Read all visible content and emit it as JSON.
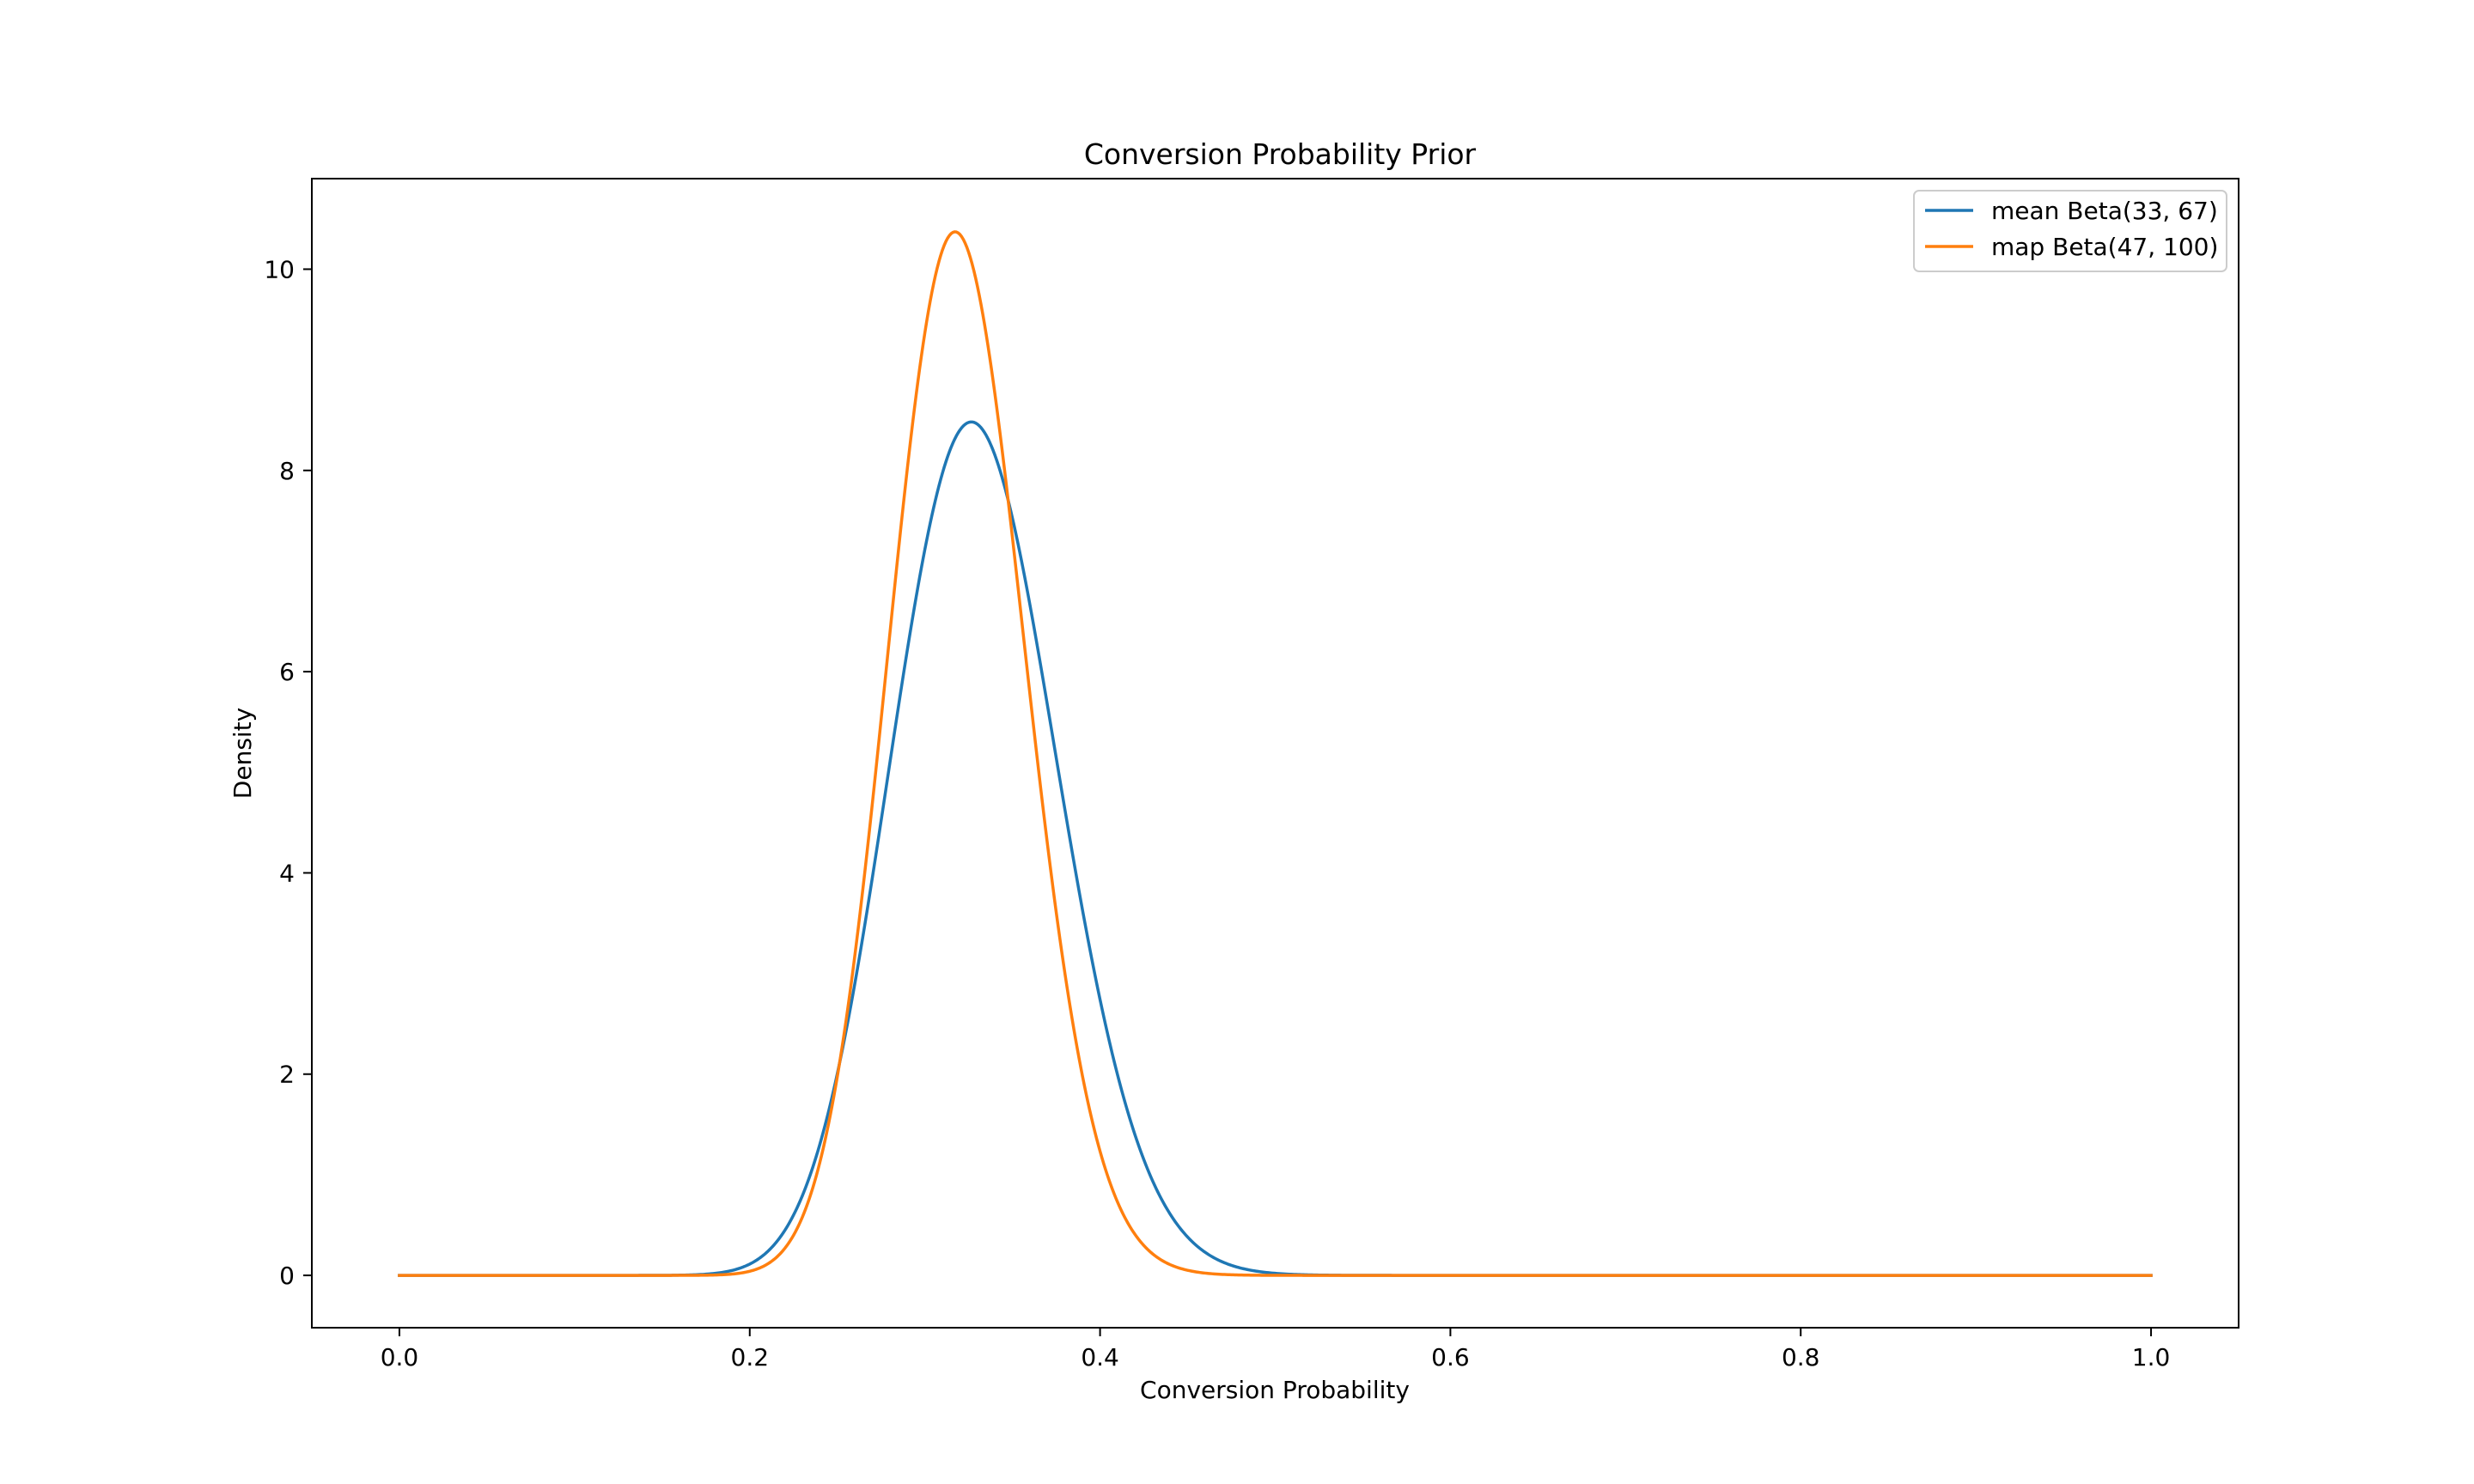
{
  "chart_data": {
    "type": "line",
    "title": "Conversion Probability Prior",
    "xlabel": "Conversion Probability",
    "ylabel": "Density",
    "xlim": [
      -0.05,
      1.05
    ],
    "ylim": [
      -0.52,
      10.9
    ],
    "x_ticks": [
      "0.0",
      "0.2",
      "0.4",
      "0.6",
      "0.8",
      "1.0"
    ],
    "x_tick_values": [
      0.0,
      0.2,
      0.4,
      0.6,
      0.8,
      1.0
    ],
    "y_ticks": [
      "0",
      "2",
      "4",
      "6",
      "8",
      "10"
    ],
    "y_tick_values": [
      0,
      2,
      4,
      6,
      8,
      10
    ],
    "grid": false,
    "legend_position": "top-right",
    "series": [
      {
        "name": "mean Beta(33, 67)",
        "alpha": 33,
        "beta": 67,
        "color": "#1f77b4"
      },
      {
        "name": "map Beta(47, 100)",
        "alpha": 47,
        "beta": 100,
        "color": "#ff7f0e"
      }
    ]
  }
}
